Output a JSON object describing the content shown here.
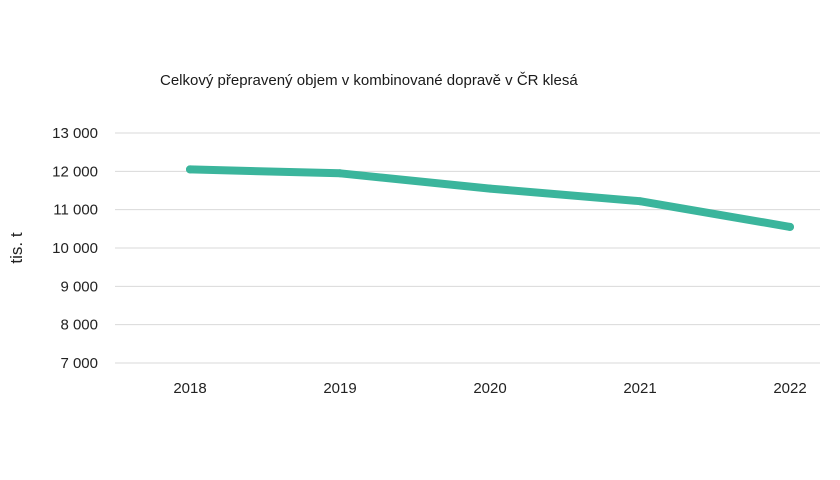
{
  "chart_data": {
    "type": "line",
    "title": "Celkový přepravený objem v kombinované dopravě v ČR klesá",
    "xlabel": "",
    "ylabel": "tis. t",
    "categories": [
      "2018",
      "2019",
      "2020",
      "2021",
      "2022"
    ],
    "series": [
      {
        "values": [
          12050,
          11950,
          11550,
          11220,
          10550
        ],
        "color": "#3bb59c"
      }
    ],
    "ylim": [
      7000,
      13000
    ],
    "yticks": [
      7000,
      8000,
      9000,
      10000,
      11000,
      12000,
      13000
    ],
    "ytick_labels": [
      "7 000",
      "8 000",
      "9 000",
      "10 000",
      "11 000",
      "12 000",
      "13 000"
    ],
    "grid": true,
    "legend": "none"
  }
}
